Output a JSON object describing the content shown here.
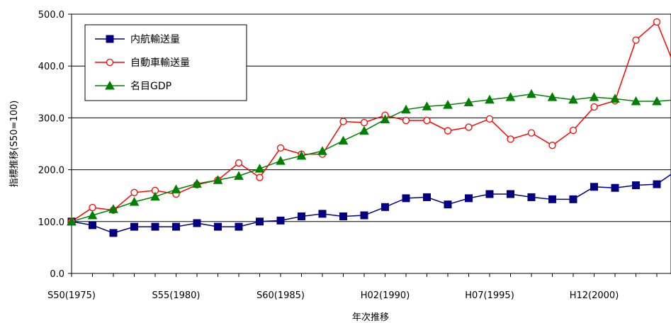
{
  "chart_data": {
    "type": "line",
    "title": "",
    "xlabel": "年次推移",
    "ylabel": "指標推移(S50=100)",
    "ylim": [
      0,
      500
    ],
    "yticks": [
      "0.0",
      "100.0",
      "200.0",
      "300.0",
      "400.0",
      "500.0"
    ],
    "x_tick_labels": [
      "S50(1975)",
      "S55(1980)",
      "S60(1985)",
      "H02(1990)",
      "H07(1995)",
      "H12(2000)"
    ],
    "x": [
      1975,
      1976,
      1977,
      1978,
      1979,
      1980,
      1981,
      1982,
      1983,
      1984,
      1985,
      1986,
      1987,
      1988,
      1989,
      1990,
      1991,
      1992,
      1993,
      1994,
      1995,
      1996,
      1997,
      1998,
      1999,
      2000,
      2001,
      2002,
      2003,
      2004
    ],
    "grid": true,
    "legend_position": "top-left",
    "series": [
      {
        "name": "内航輸送量",
        "color": "#000080",
        "marker": "square",
        "values": [
          100,
          93,
          78,
          90,
          90,
          90,
          97,
          90,
          90,
          100,
          102,
          110,
          115,
          110,
          112,
          128,
          145,
          147,
          133,
          145,
          153,
          153,
          147,
          143,
          143,
          167,
          165,
          170,
          172,
          200
        ]
      },
      {
        "name": "自動車輸送量",
        "color": "#ff0000",
        "marker": "circle-open",
        "values": [
          100,
          127,
          122,
          156,
          160,
          153,
          171,
          180,
          213,
          185,
          242,
          230,
          230,
          293,
          291,
          305,
          295,
          295,
          275,
          282,
          298,
          259,
          271,
          247,
          276,
          321,
          333,
          450,
          485,
          385
        ]
      },
      {
        "name": "名目GDP",
        "color": "#008000",
        "marker": "triangle",
        "values": [
          100,
          112,
          124,
          138,
          148,
          162,
          173,
          180,
          188,
          202,
          217,
          227,
          236,
          256,
          275,
          297,
          316,
          322,
          325,
          330,
          335,
          340,
          346,
          340,
          335,
          340,
          337,
          332,
          332,
          335
        ]
      }
    ]
  }
}
